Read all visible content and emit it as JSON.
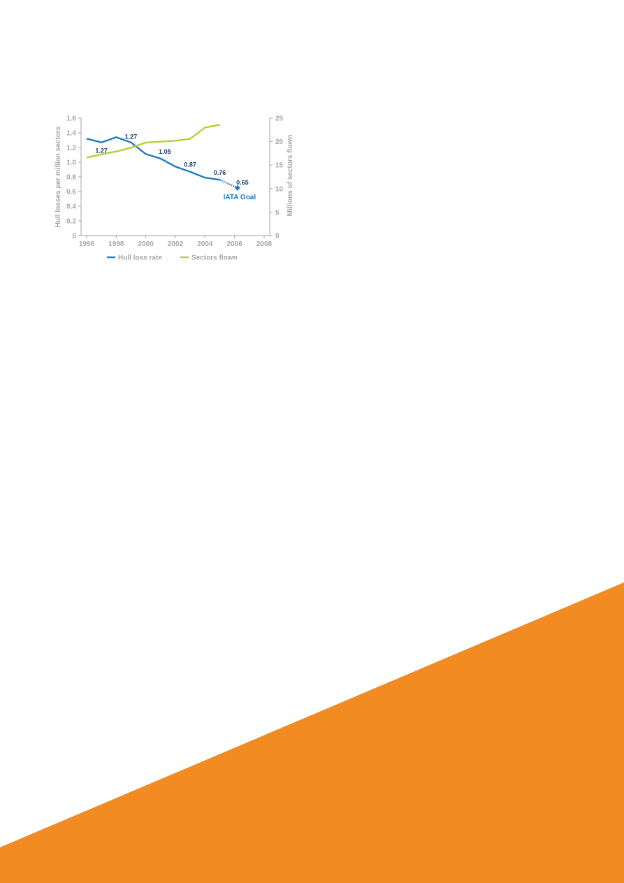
{
  "colors": {
    "hull_loss": "#1f7bc1",
    "sectors": "#b5cf3a",
    "axis": "#a6a6a6",
    "data_label": "#1d3c6e",
    "accent_orange": "#f28c22"
  },
  "chart_data": {
    "type": "line",
    "title": "",
    "xlabel": "",
    "ylabel": "Hull losses per million sectors",
    "y2label": "Millions of sectors flown",
    "xlim": [
      1996,
      2008
    ],
    "ylim": [
      0,
      1.6
    ],
    "y2lim": [
      0,
      25
    ],
    "x_ticks": [
      "1996",
      "1998",
      "2000",
      "2002",
      "2004",
      "2006",
      "2008"
    ],
    "y_ticks": [
      "0",
      "0.2",
      "0.4",
      "0.6",
      "0.8",
      "1.0",
      "1.2",
      "1.4",
      "1.6"
    ],
    "y2_ticks": [
      "0",
      "5",
      "10",
      "15",
      "20",
      "25"
    ],
    "grid": false,
    "legend_position": "bottom",
    "series": [
      {
        "name": "Hull loss rate",
        "axis": "left",
        "x": [
          1996,
          1997,
          1998,
          1999,
          2000,
          2001,
          2002,
          2003,
          2004,
          2005
        ],
        "values": [
          1.32,
          1.27,
          1.34,
          1.27,
          1.11,
          1.05,
          0.94,
          0.87,
          0.79,
          0.76
        ]
      },
      {
        "name": "Sectors flown",
        "axis": "right",
        "x": [
          1996,
          1997,
          1998,
          1999,
          2000,
          2001,
          2002,
          2003,
          2004,
          2005
        ],
        "values": [
          16.6,
          17.3,
          17.9,
          18.7,
          19.8,
          20.0,
          20.2,
          20.6,
          23.0,
          23.6
        ]
      }
    ],
    "goal": {
      "name": "IATA Goal",
      "from_x": 2005,
      "from_value": 0.76,
      "x": 2006.2,
      "value": 0.65,
      "label": "0.65"
    },
    "data_labels": [
      {
        "x": 1997,
        "value": 1.27,
        "text": "1.27"
      },
      {
        "x": 1999,
        "value": 1.27,
        "text": "1.27"
      },
      {
        "x": 2001,
        "value": 1.05,
        "text": "1.05"
      },
      {
        "x": 2003,
        "value": 0.87,
        "text": "0.87"
      },
      {
        "x": 2005,
        "value": 0.76,
        "text": "0.76"
      }
    ]
  }
}
